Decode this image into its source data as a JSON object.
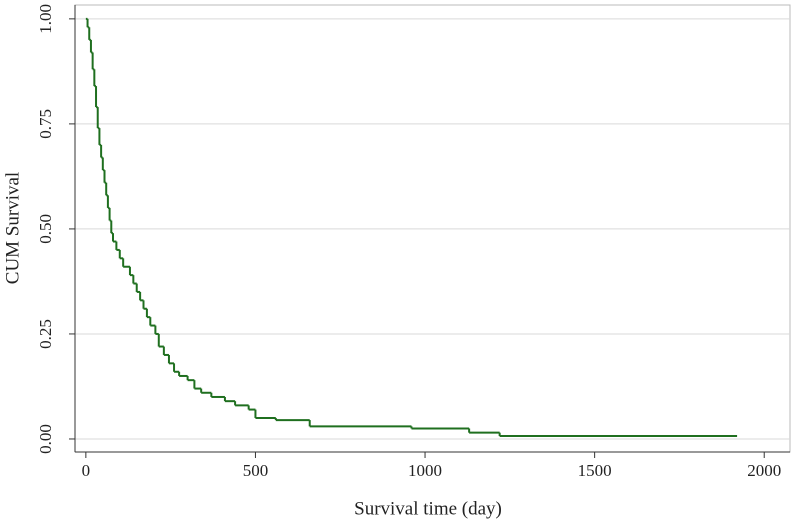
{
  "chart_data": {
    "type": "line",
    "step": "post",
    "x_label": "Survival time (day)",
    "y_label": "CUM Survival",
    "x": [
      0,
      5,
      10,
      15,
      20,
      25,
      30,
      35,
      40,
      45,
      50,
      55,
      60,
      65,
      70,
      75,
      80,
      90,
      100,
      110,
      130,
      140,
      150,
      160,
      170,
      180,
      190,
      205,
      215,
      230,
      245,
      260,
      275,
      300,
      320,
      340,
      370,
      410,
      440,
      480,
      500,
      560,
      660,
      960,
      1130,
      1220,
      1920
    ],
    "series": [
      {
        "color": "#1f6f1f",
        "values": [
          1.0,
          0.98,
          0.95,
          0.92,
          0.88,
          0.84,
          0.79,
          0.74,
          0.7,
          0.67,
          0.64,
          0.61,
          0.58,
          0.55,
          0.52,
          0.49,
          0.47,
          0.45,
          0.43,
          0.41,
          0.39,
          0.37,
          0.35,
          0.33,
          0.31,
          0.29,
          0.27,
          0.25,
          0.22,
          0.2,
          0.18,
          0.16,
          0.15,
          0.14,
          0.12,
          0.11,
          0.1,
          0.09,
          0.08,
          0.07,
          0.05,
          0.045,
          0.03,
          0.025,
          0.015,
          0.007,
          0.007
        ]
      }
    ],
    "xlim": [
      -32,
      2076
    ],
    "ylim": [
      -0.031,
      1.033
    ],
    "xticks": [
      0,
      500,
      1000,
      1500,
      2000
    ],
    "yticks": [
      {
        "value": 0,
        "label": "0.00"
      },
      {
        "value": 0.25,
        "label": "0.25"
      },
      {
        "value": 0.5,
        "label": "0.50"
      },
      {
        "value": 0.75,
        "label": "0.75"
      },
      {
        "value": 1,
        "label": "1.00"
      }
    ],
    "grid": true
  }
}
